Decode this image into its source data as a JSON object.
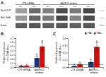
{
  "chart_data": [
    {
      "type": "heatmap",
      "title": "A",
      "categories": [
        "TSA-",
        "TSA+",
        "TSA-",
        "TSA+",
        "TSA-",
        "TSA+"
      ],
      "lane_groups": [
        "CTR (siRNA)",
        "CTR (siRNA)",
        "AdV/FLI1-inhibitor",
        "AdV/FLI1-inhibitor",
        "AdV/FLI1-inhibitor",
        "AdV/FLI1-inhibitor"
      ],
      "rows": [
        "Rac1/LD-FT",
        "Rac1-GalA",
        "β-actin"
      ],
      "row_sizes": [
        "63 kDa",
        "63 kDa",
        "41 kDa"
      ],
      "cells": [
        [
          0.62,
          0.42,
          0.5,
          0.3,
          0.48,
          0.28
        ],
        [
          0.6,
          0.4,
          0.48,
          0.28,
          0.52,
          0.3
        ],
        [
          0.38,
          0.34,
          0.38,
          0.34,
          0.38,
          0.34
        ]
      ]
    },
    {
      "type": "bar",
      "title": "B",
      "categories": [
        "CTR (siRNA)",
        "AdV/FLI1-\ninhibitor"
      ],
      "ylabel": "Relative expression\nof α-GalA (a.u.)",
      "series": [
        {
          "name": "TSA -",
          "color": "#1a3a7a",
          "values": [
            0.02,
            0.22
          ],
          "errors": [
            0.004,
            0.05
          ],
          "letters": [
            "a",
            "b"
          ]
        },
        {
          "name": "TSA +",
          "color": "#cc1111",
          "values": [
            0.03,
            0.5
          ],
          "errors": [
            0.008,
            0.1
          ],
          "letters": [
            "a",
            "b"
          ]
        }
      ],
      "hline": 0.03,
      "ylim": [
        0,
        0.7
      ],
      "yticks": [
        {
          "value": 0,
          "label": "0.0"
        },
        0.1,
        0.2,
        0.3,
        0.4,
        0.5,
        0.6,
        0.7
      ],
      "grid": false,
      "legend": false
    },
    {
      "type": "bar",
      "title": "C",
      "categories": [
        "CTR (siRNA)",
        "AdV/FLI1-\ninhibitor"
      ],
      "ylabel": "Relative expression\nof α-GalA (a.u.)",
      "series": [
        {
          "name": "TSA -",
          "color": "#1a3a7a",
          "values": [
            0.015,
            0.07
          ],
          "errors": [
            0.004,
            0.015
          ],
          "letters": [
            "a",
            "b"
          ]
        },
        {
          "name": "TSA +",
          "color": "#cc1111",
          "values": [
            0.04,
            0.28
          ],
          "errors": [
            0.01,
            0.06
          ],
          "letters": [
            "a",
            "c"
          ]
        }
      ],
      "hline": 0.035,
      "ylim": [
        0,
        0.4
      ],
      "yticks": [
        {
          "value": 0,
          "label": "0.0"
        },
        0.1,
        0.2,
        0.3,
        0.4
      ],
      "grid": false,
      "legend": "upper right"
    }
  ]
}
